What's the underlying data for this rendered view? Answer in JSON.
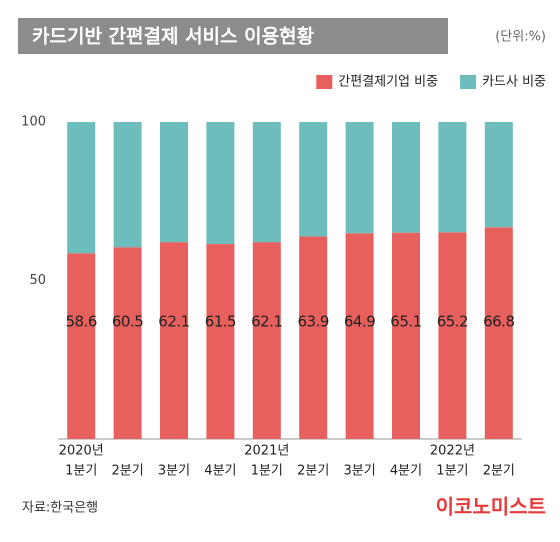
{
  "chart_data": {
    "type": "stacked_bar",
    "title": "카드기반 간편결제 서비스 이용현황",
    "unit": "(단위:%)",
    "categories": [
      [
        "2020년",
        "1분기"
      ],
      [
        "2분기"
      ],
      [
        "3분기"
      ],
      [
        "4분기"
      ],
      [
        "2021년",
        "1분기"
      ],
      [
        "2분기"
      ],
      [
        "3분기"
      ],
      [
        "4분기"
      ],
      [
        "2022년",
        "1분기"
      ],
      [
        "2분기"
      ]
    ],
    "series": [
      {
        "name": "간편결제기업 비중",
        "color": "#e8605e",
        "values": [
          58.6,
          60.5,
          62.1,
          61.5,
          62.1,
          63.9,
          64.9,
          65.1,
          65.2,
          66.8
        ],
        "show_labels": true
      },
      {
        "name": "카드사 비중",
        "color": "#6cbdbc",
        "values": [
          41.4,
          39.5,
          37.9,
          38.5,
          37.9,
          36.1,
          35.1,
          34.9,
          34.8,
          33.2
        ],
        "show_labels": false
      }
    ],
    "ylim": [
      0,
      100
    ],
    "yticks": [
      50,
      100
    ],
    "legend": "top-right",
    "source": "자료:한국은행",
    "logo": "이코노미스트"
  }
}
